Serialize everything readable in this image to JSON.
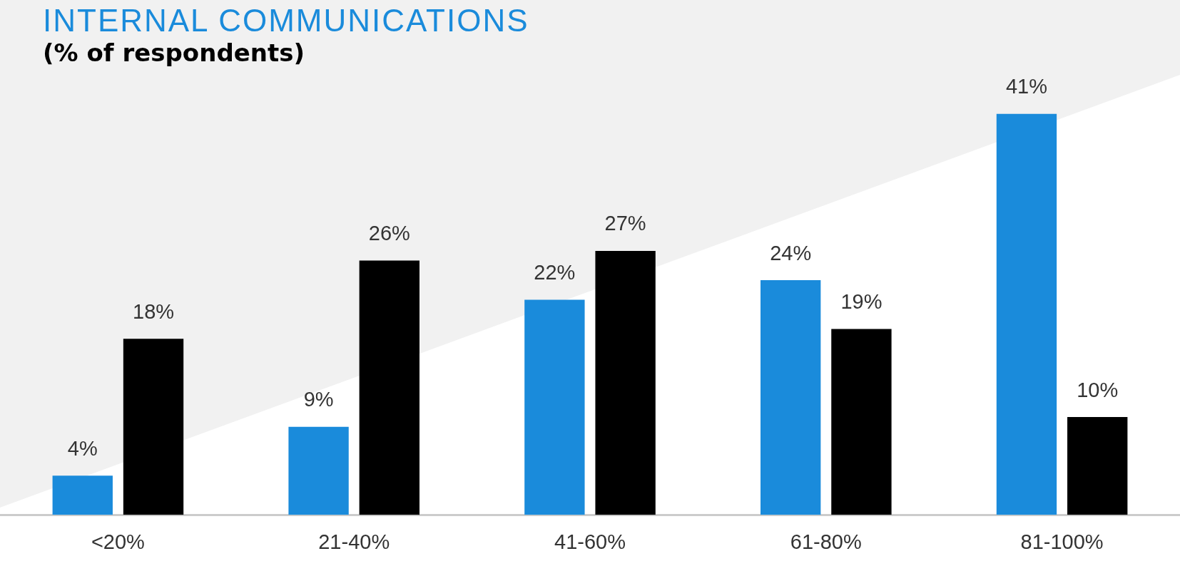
{
  "chart_data": {
    "type": "bar",
    "title": "INTERNAL COMMUNICATIONS",
    "subtitle": "(% of respondents)",
    "categories": [
      "<20%",
      "21-40%",
      "41-60%",
      "61-80%",
      "81-100%"
    ],
    "series": [
      {
        "color": "#1a8bdb",
        "values": [
          4,
          9,
          22,
          24,
          41
        ],
        "value_labels": [
          "4%",
          "9%",
          "22%",
          "24%",
          "41%"
        ]
      },
      {
        "color": "#000000",
        "values": [
          18,
          26,
          27,
          19,
          10
        ],
        "value_labels": [
          "18%",
          "26%",
          "27%",
          "19%",
          "10%"
        ]
      }
    ],
    "grid": false,
    "legend": false
  }
}
